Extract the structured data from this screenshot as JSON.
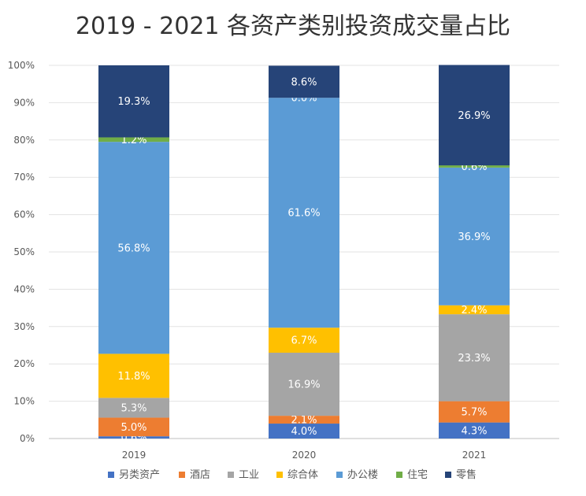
{
  "chart_data": {
    "type": "bar",
    "stacked": true,
    "title": "2019 - 2021 各资产类别投资成交量占比",
    "categories": [
      "2019",
      "2020",
      "2021"
    ],
    "ylim": [
      0,
      100
    ],
    "yticks": [
      "0%",
      "10%",
      "20%",
      "30%",
      "40%",
      "50%",
      "60%",
      "70%",
      "80%",
      "90%",
      "100%"
    ],
    "grid": true,
    "legend_position": "bottom",
    "series": [
      {
        "name": "另类资产",
        "color": "#4472C4",
        "values": [
          0.6,
          4.0,
          4.3
        ],
        "labels": [
          "0.6%",
          "4.0%",
          "4.3%"
        ]
      },
      {
        "name": "酒店",
        "color": "#ED7D31",
        "values": [
          5.0,
          2.1,
          5.7
        ],
        "labels": [
          "5.0%",
          "2.1%",
          "5.7%"
        ]
      },
      {
        "name": "工业",
        "color": "#A5A5A5",
        "values": [
          5.3,
          16.9,
          23.3
        ],
        "labels": [
          "5.3%",
          "16.9%",
          "23.3%"
        ]
      },
      {
        "name": "综合体",
        "color": "#FFC000",
        "values": [
          11.8,
          6.7,
          2.4
        ],
        "labels": [
          "11.8%",
          "6.7%",
          "2.4%"
        ]
      },
      {
        "name": "办公楼",
        "color": "#5B9BD5",
        "values": [
          56.8,
          61.6,
          36.9
        ],
        "labels": [
          "56.8%",
          "61.6%",
          "36.9%"
        ]
      },
      {
        "name": "住宅",
        "color": "#70AD47",
        "values": [
          1.2,
          0.0,
          0.6
        ],
        "labels": [
          "1.2%",
          "0.0%",
          "0.6%"
        ]
      },
      {
        "name": "零售",
        "color": "#264478",
        "values": [
          19.3,
          8.6,
          26.9
        ],
        "labels": [
          "19.3%",
          "8.6%",
          "26.9%"
        ]
      }
    ]
  }
}
